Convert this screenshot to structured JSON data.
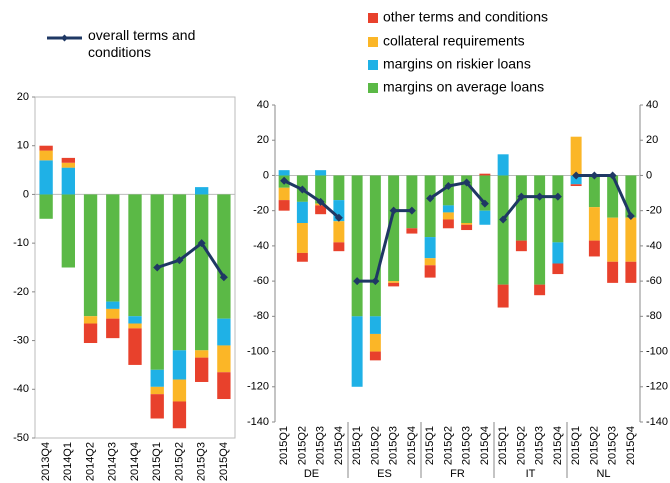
{
  "chart_data": [
    {
      "type": "bar",
      "stacked": true,
      "categories": [
        "2013Q4",
        "2014Q1",
        "2014Q2",
        "2014Q3",
        "2014Q4",
        "2015Q1",
        "2015Q2",
        "2015Q3",
        "2015Q4"
      ],
      "ylim": [
        -50,
        20
      ],
      "yticks": [
        -50,
        -40,
        -30,
        -20,
        -10,
        0,
        10,
        20
      ],
      "series": [
        {
          "color": "#e8412c",
          "values": [
            1,
            1,
            -4,
            -4,
            -7.5,
            -5,
            -5.5,
            -5,
            -5.5
          ]
        },
        {
          "color": "#fbb627",
          "values": [
            2,
            1,
            -1.5,
            -2,
            -1,
            -1.5,
            -4.5,
            -1.5,
            -5.5
          ]
        },
        {
          "color": "#1fb1e6",
          "values": [
            7,
            5.5,
            0,
            -1.5,
            -1.5,
            -3.5,
            -6,
            1.5,
            -5.5
          ]
        },
        {
          "color": "#5bb946",
          "values": [
            -5,
            -15,
            -25,
            -22,
            -25,
            -36,
            -32,
            -32,
            -25.5
          ]
        },
        {
          "name": "overall terms and conditions",
          "type": "line",
          "color": "#1f3864",
          "values": [
            null,
            null,
            null,
            null,
            null,
            -15,
            -13.5,
            -10,
            -17
          ]
        }
      ]
    },
    {
      "type": "bar",
      "stacked": true,
      "groups": [
        "DE",
        "ES",
        "FR",
        "IT",
        "NL"
      ],
      "categories": [
        "2015Q1",
        "2015Q2",
        "2015Q3",
        "2015Q4",
        "2015Q1",
        "2015Q2",
        "2015Q3",
        "2015Q4",
        "2015Q1",
        "2015Q2",
        "2015Q3",
        "2015Q4",
        "2015Q1",
        "2015Q2",
        "2015Q3",
        "2015Q4",
        "2015Q1",
        "2015Q2",
        "2015Q3",
        "2015Q4"
      ],
      "ylim": [
        -140,
        40
      ],
      "yticks": [
        -140,
        -120,
        -100,
        -80,
        -60,
        -40,
        -20,
        0,
        20,
        40
      ],
      "series": [
        {
          "name": "other terms and conditions",
          "color": "#e8412c",
          "values": [
            -6,
            -5,
            -5,
            -5,
            0,
            -5,
            -2,
            -3,
            -7,
            -5,
            -3,
            1,
            -13,
            -6,
            -6,
            -6,
            -1,
            -9,
            -12,
            -12
          ]
        },
        {
          "name": "collateral requirements",
          "color": "#fbb627",
          "values": [
            -7,
            -17,
            -1,
            -12,
            0,
            -10,
            -1,
            0,
            -4,
            -4,
            -1,
            0,
            0,
            0,
            0,
            0,
            22,
            -19,
            -25,
            -25
          ]
        },
        {
          "name": "margins on riskier loans",
          "color": "#1fb1e6",
          "values": [
            3,
            -12,
            3,
            -12,
            -40,
            -10,
            0,
            0,
            -12,
            -4,
            0,
            -8,
            12,
            0,
            0,
            -12,
            -5,
            0,
            0,
            0
          ]
        },
        {
          "name": "margins on average loans",
          "color": "#5bb946",
          "values": [
            -7,
            -15,
            -16,
            -14,
            -80,
            -80,
            -60,
            -30,
            -35,
            -17,
            -27,
            -20,
            -62,
            -37,
            -62,
            -38,
            0,
            -18,
            -24,
            -24
          ]
        },
        {
          "type": "line",
          "color": "#1f3864",
          "values": [
            -3,
            -8,
            -15,
            -24,
            -60,
            -60,
            -20,
            -20,
            -13,
            -6,
            -4,
            -16,
            -25,
            -12,
            -12,
            -12,
            0,
            0,
            0,
            -23
          ]
        }
      ]
    }
  ]
}
